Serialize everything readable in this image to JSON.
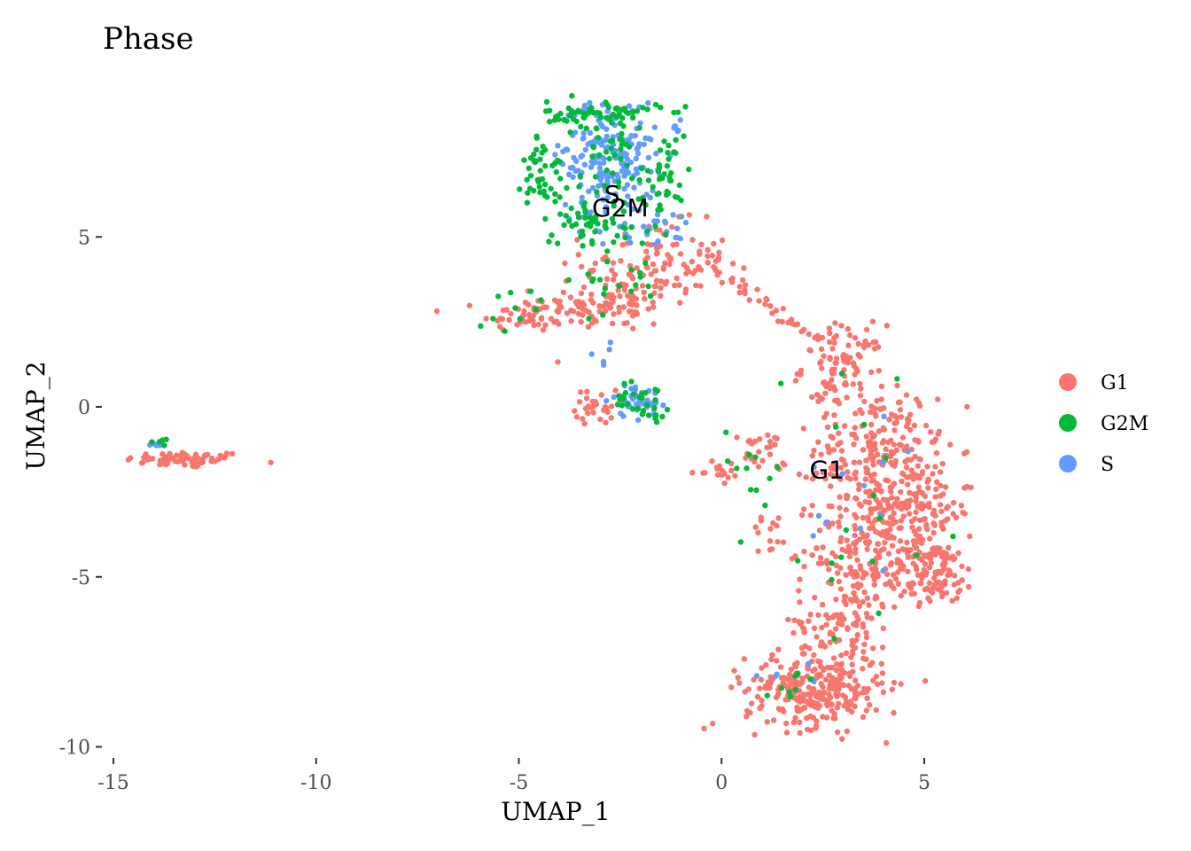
{
  "chart_data": {
    "type": "scatter",
    "title": "Phase",
    "xlabel": "UMAP_1",
    "ylabel": "UMAP_2",
    "xlim": [
      -15.1,
      6.6
    ],
    "ylim": [
      -10.3,
      9.3
    ],
    "x_ticks": [
      {
        "value": -15,
        "label": "-15"
      },
      {
        "value": -10,
        "label": "-10"
      },
      {
        "value": -5,
        "label": "-5"
      },
      {
        "value": 0,
        "label": "0"
      },
      {
        "value": 5,
        "label": "5"
      }
    ],
    "y_ticks": [
      {
        "value": 5,
        "label": "5"
      },
      {
        "value": 0,
        "label": "0"
      },
      {
        "value": -5,
        "label": "-5"
      },
      {
        "value": -10,
        "label": "-10"
      }
    ],
    "grid": false,
    "legend_position": "right",
    "series": [
      {
        "name": "G1",
        "color": "#F8766D",
        "clusters": [
          {
            "cx": -13.2,
            "cy": -1.55,
            "sx": 0.75,
            "sy": 0.12,
            "n": 70
          },
          {
            "cx": -4.8,
            "cy": 2.7,
            "sx": 0.55,
            "sy": 0.25,
            "n": 50
          },
          {
            "cx": -2.8,
            "cy": 3.0,
            "sx": 0.8,
            "sy": 0.4,
            "n": 90
          },
          {
            "cx": -1.6,
            "cy": 4.2,
            "sx": 0.9,
            "sy": 0.6,
            "n": 110
          },
          {
            "cx": -3.1,
            "cy": 0.0,
            "sx": 0.25,
            "sy": 0.25,
            "n": 30
          },
          {
            "cx": 0.9,
            "cy": -1.4,
            "sx": 0.35,
            "sy": 0.35,
            "n": 30
          },
          {
            "cx": -0.2,
            "cy": -1.9,
            "sx": 0.3,
            "sy": 0.12,
            "n": 14
          },
          {
            "cx": 1.2,
            "cy": -3.8,
            "sx": 0.3,
            "sy": 0.4,
            "n": 14
          },
          {
            "cx": 3.0,
            "cy": 1.2,
            "sx": 0.5,
            "sy": 0.6,
            "n": 90
          },
          {
            "cx": 3.8,
            "cy": -1.2,
            "sx": 0.75,
            "sy": 0.9,
            "n": 190
          },
          {
            "cx": 4.6,
            "cy": -3.0,
            "sx": 0.8,
            "sy": 0.9,
            "n": 200
          },
          {
            "cx": 3.4,
            "cy": -4.2,
            "sx": 0.6,
            "sy": 0.9,
            "n": 140
          },
          {
            "cx": 5.2,
            "cy": -4.9,
            "sx": 0.55,
            "sy": 0.45,
            "n": 110
          },
          {
            "cx": 3.0,
            "cy": -6.3,
            "sx": 0.6,
            "sy": 0.7,
            "n": 100
          },
          {
            "cx": 2.3,
            "cy": -8.3,
            "sx": 0.85,
            "sy": 0.55,
            "n": 290
          }
        ],
        "path": [
          [
            -0.5,
            4.8
          ],
          [
            0.1,
            3.8
          ],
          [
            0.6,
            3.4
          ],
          [
            1.2,
            2.9
          ],
          [
            1.8,
            2.4
          ],
          [
            2.4,
            1.9
          ]
        ]
      },
      {
        "name": "G2M",
        "color": "#00BA38",
        "clusters": [
          {
            "cx": -2.9,
            "cy": 8.6,
            "sx": 0.7,
            "sy": 0.2,
            "n": 70
          },
          {
            "cx": -4.4,
            "cy": 6.9,
            "sx": 0.25,
            "sy": 0.6,
            "n": 45
          },
          {
            "cx": -1.4,
            "cy": 6.8,
            "sx": 0.3,
            "sy": 0.6,
            "n": 40
          },
          {
            "cx": -3.2,
            "cy": 5.4,
            "sx": 0.7,
            "sy": 0.35,
            "n": 45
          },
          {
            "cx": -2.8,
            "cy": 7.0,
            "sx": 0.6,
            "sy": 0.8,
            "n": 40
          },
          {
            "cx": -2.8,
            "cy": 3.8,
            "sx": 0.7,
            "sy": 0.7,
            "n": 22
          },
          {
            "cx": -4.6,
            "cy": 2.9,
            "sx": 0.5,
            "sy": 0.3,
            "n": 10
          },
          {
            "cx": -2.0,
            "cy": 0.2,
            "sx": 0.35,
            "sy": 0.25,
            "n": 30
          },
          {
            "cx": -13.8,
            "cy": -1.05,
            "sx": 0.15,
            "sy": 0.08,
            "n": 6
          },
          {
            "cx": 3.5,
            "cy": -3.0,
            "sx": 1.3,
            "sy": 2.5,
            "n": 20
          },
          {
            "cx": 1.8,
            "cy": -8.1,
            "sx": 0.6,
            "sy": 0.4,
            "n": 8
          },
          {
            "cx": 0.6,
            "cy": -1.7,
            "sx": 0.5,
            "sy": 0.6,
            "n": 10
          }
        ],
        "path": []
      },
      {
        "name": "S",
        "color": "#619CFF",
        "clusters": [
          {
            "cx": -2.8,
            "cy": 7.4,
            "sx": 0.6,
            "sy": 0.85,
            "n": 200
          },
          {
            "cx": -2.0,
            "cy": 5.3,
            "sx": 0.7,
            "sy": 0.3,
            "n": 30
          },
          {
            "cx": -1.1,
            "cy": 8.2,
            "sx": 0.1,
            "sy": 0.15,
            "n": 6
          },
          {
            "cx": -2.1,
            "cy": 0.2,
            "sx": 0.3,
            "sy": 0.25,
            "n": 40
          },
          {
            "cx": -13.9,
            "cy": -1.15,
            "sx": 0.1,
            "sy": 0.05,
            "n": 4
          },
          {
            "cx": 3.5,
            "cy": -2.5,
            "sx": 1.0,
            "sy": 2.0,
            "n": 12
          },
          {
            "cx": 1.6,
            "cy": -8.2,
            "sx": 0.6,
            "sy": 0.5,
            "n": 6
          },
          {
            "cx": -3.1,
            "cy": 1.5,
            "sx": 0.2,
            "sy": 0.5,
            "n": 6
          }
        ],
        "path": []
      }
    ],
    "annotations": [
      {
        "text": "S",
        "x": -2.7,
        "y": 6.0
      },
      {
        "text": "G2M",
        "x": -2.5,
        "y": 5.6
      },
      {
        "text": "G1",
        "x": 2.6,
        "y": -2.1
      }
    ]
  }
}
